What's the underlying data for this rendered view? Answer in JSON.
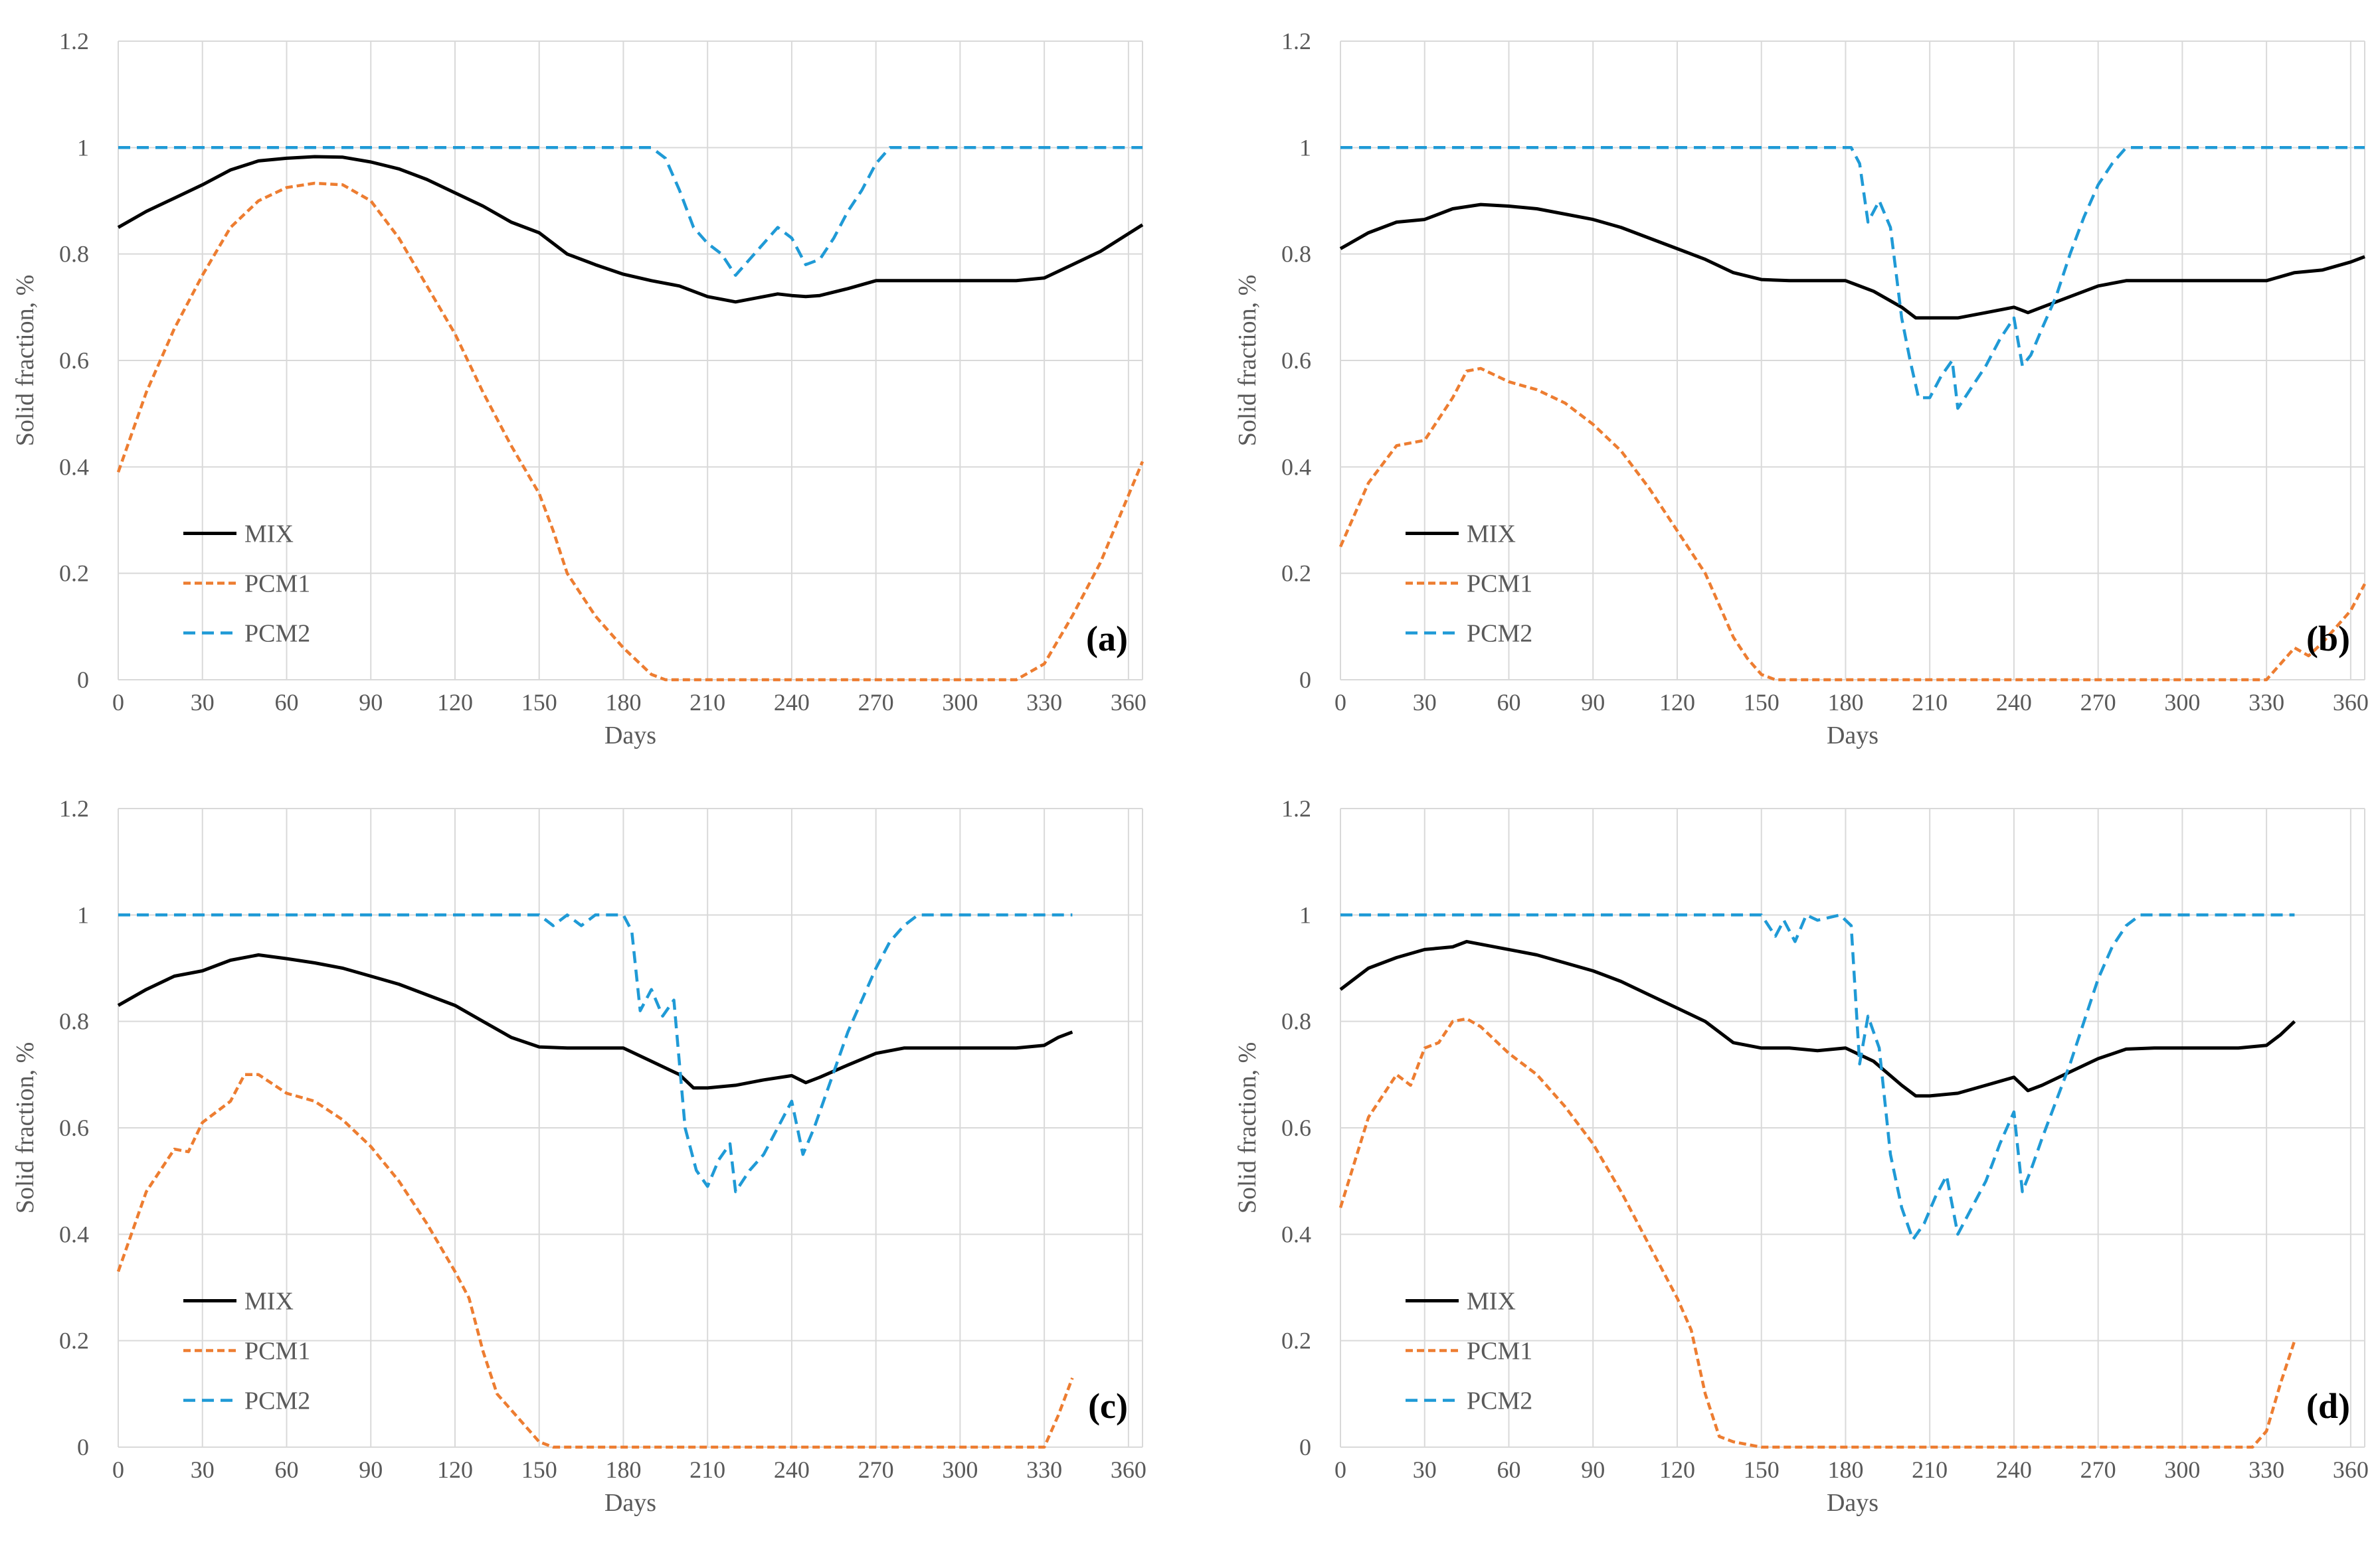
{
  "series_colors": {
    "MIX": "#000000",
    "PCM1": "#ED7D31",
    "PCM2": "#1F9AD6"
  },
  "grid_color": "#D9D9D9",
  "chart_data": [
    {
      "type": "line",
      "panel_label": "(a)",
      "xlabel": "Days",
      "ylabel": "Solid fraction, %",
      "xlim": [
        0,
        365
      ],
      "ylim": [
        0,
        1.2
      ],
      "xticks": [
        0,
        30,
        60,
        90,
        120,
        150,
        180,
        210,
        240,
        270,
        300,
        330,
        360
      ],
      "yticks": [
        0,
        0.2,
        0.4,
        0.6,
        0.8,
        1,
        1.2
      ],
      "yticklabels": [
        "0",
        "0.2",
        "0.4",
        "0.6",
        "0.8",
        "1",
        "1.2"
      ],
      "grid": true,
      "legend": "bottom-left",
      "series": [
        {
          "name": "MIX",
          "style": "solid",
          "x": [
            0,
            10,
            20,
            30,
            40,
            50,
            60,
            70,
            80,
            90,
            100,
            110,
            120,
            130,
            140,
            150,
            160,
            170,
            180,
            190,
            200,
            210,
            215,
            220,
            230,
            235,
            240,
            245,
            250,
            260,
            270,
            280,
            290,
            300,
            310,
            320,
            330,
            340,
            350,
            365
          ],
          "y": [
            0.85,
            0.88,
            0.905,
            0.93,
            0.958,
            0.975,
            0.98,
            0.983,
            0.982,
            0.973,
            0.96,
            0.94,
            0.915,
            0.89,
            0.86,
            0.84,
            0.8,
            0.78,
            0.762,
            0.75,
            0.74,
            0.72,
            0.715,
            0.71,
            0.72,
            0.725,
            0.722,
            0.72,
            0.722,
            0.735,
            0.75,
            0.75,
            0.75,
            0.75,
            0.75,
            0.75,
            0.755,
            0.78,
            0.805,
            0.855
          ]
        },
        {
          "name": "PCM1",
          "style": "dashed",
          "x": [
            0,
            10,
            20,
            30,
            40,
            50,
            60,
            70,
            80,
            90,
            100,
            110,
            120,
            130,
            140,
            150,
            155,
            160,
            170,
            180,
            190,
            195,
            200,
            250,
            300,
            320,
            330,
            340,
            350,
            365
          ],
          "y": [
            0.39,
            0.54,
            0.66,
            0.76,
            0.85,
            0.9,
            0.925,
            0.933,
            0.93,
            0.9,
            0.83,
            0.74,
            0.65,
            0.54,
            0.44,
            0.35,
            0.28,
            0.2,
            0.12,
            0.06,
            0.01,
            0.0,
            0.0,
            0.0,
            0.0,
            0.0,
            0.03,
            0.12,
            0.22,
            0.41
          ]
        },
        {
          "name": "PCM2",
          "style": "dashed",
          "x": [
            0,
            190,
            195,
            200,
            205,
            210,
            215,
            220,
            225,
            230,
            235,
            240,
            245,
            250,
            255,
            260,
            265,
            270,
            275,
            365
          ],
          "y": [
            1,
            1,
            0.98,
            0.92,
            0.85,
            0.82,
            0.8,
            0.76,
            0.79,
            0.82,
            0.85,
            0.83,
            0.78,
            0.79,
            0.83,
            0.88,
            0.92,
            0.97,
            1,
            1
          ]
        }
      ]
    },
    {
      "type": "line",
      "panel_label": "(b)",
      "xlabel": "Days",
      "ylabel": "Solid fraction, %",
      "xlim": [
        0,
        365
      ],
      "ylim": [
        0,
        1.2
      ],
      "xticks": [
        0,
        30,
        60,
        90,
        120,
        150,
        180,
        210,
        240,
        270,
        300,
        330,
        360
      ],
      "yticks": [
        0,
        0.2,
        0.4,
        0.6,
        0.8,
        1,
        1.2
      ],
      "yticklabels": [
        "0",
        "0.2",
        "0.4",
        "0.6",
        "0.8",
        "1",
        "1.2"
      ],
      "grid": true,
      "legend": "bottom-left",
      "series": [
        {
          "name": "MIX",
          "style": "solid",
          "x": [
            0,
            10,
            20,
            30,
            40,
            50,
            60,
            70,
            80,
            90,
            100,
            110,
            120,
            130,
            140,
            150,
            160,
            170,
            180,
            190,
            200,
            205,
            210,
            220,
            230,
            240,
            245,
            250,
            260,
            270,
            280,
            290,
            300,
            310,
            320,
            330,
            340,
            350,
            360,
            365
          ],
          "y": [
            0.81,
            0.84,
            0.86,
            0.865,
            0.885,
            0.893,
            0.89,
            0.885,
            0.875,
            0.865,
            0.85,
            0.83,
            0.81,
            0.79,
            0.765,
            0.752,
            0.75,
            0.75,
            0.75,
            0.73,
            0.7,
            0.68,
            0.68,
            0.68,
            0.69,
            0.7,
            0.69,
            0.7,
            0.72,
            0.74,
            0.75,
            0.75,
            0.75,
            0.75,
            0.75,
            0.75,
            0.765,
            0.77,
            0.785,
            0.795
          ]
        },
        {
          "name": "PCM1",
          "style": "dashed",
          "x": [
            0,
            10,
            20,
            30,
            40,
            45,
            50,
            60,
            70,
            80,
            90,
            100,
            110,
            120,
            130,
            140,
            145,
            150,
            155,
            200,
            300,
            330,
            335,
            340,
            345,
            350,
            360,
            365
          ],
          "y": [
            0.25,
            0.37,
            0.44,
            0.45,
            0.53,
            0.58,
            0.585,
            0.56,
            0.545,
            0.52,
            0.48,
            0.43,
            0.36,
            0.28,
            0.2,
            0.08,
            0.04,
            0.01,
            0.0,
            0.0,
            0.0,
            0.0,
            0.03,
            0.06,
            0.045,
            0.07,
            0.13,
            0.18
          ]
        },
        {
          "name": "PCM2",
          "style": "dashed",
          "x": [
            0,
            182,
            185,
            188,
            192,
            196,
            200,
            203,
            206,
            210,
            214,
            218,
            220,
            225,
            230,
            235,
            240,
            243,
            246,
            250,
            255,
            260,
            265,
            270,
            275,
            280,
            365
          ],
          "y": [
            1,
            1,
            0.97,
            0.86,
            0.9,
            0.85,
            0.68,
            0.6,
            0.53,
            0.53,
            0.57,
            0.6,
            0.51,
            0.55,
            0.59,
            0.64,
            0.68,
            0.59,
            0.61,
            0.66,
            0.72,
            0.8,
            0.87,
            0.93,
            0.97,
            1,
            1
          ]
        }
      ]
    },
    {
      "type": "line",
      "panel_label": "(c)",
      "xlabel": "Days",
      "ylabel": "Solid fraction, %",
      "xlim": [
        0,
        365
      ],
      "ylim": [
        0,
        1.2
      ],
      "xticks": [
        0,
        30,
        60,
        90,
        120,
        150,
        180,
        210,
        240,
        270,
        300,
        330,
        360
      ],
      "yticks": [
        0,
        0.2,
        0.4,
        0.6,
        0.8,
        1,
        1.2
      ],
      "yticklabels": [
        "0",
        "0.2",
        "0.4",
        "0.6",
        "0.8",
        "1",
        "1.2"
      ],
      "grid": true,
      "legend": "bottom-left",
      "series": [
        {
          "name": "MIX",
          "style": "solid",
          "x": [
            0,
            10,
            20,
            30,
            40,
            50,
            60,
            70,
            80,
            90,
            100,
            110,
            120,
            130,
            140,
            150,
            160,
            170,
            180,
            190,
            200,
            205,
            210,
            220,
            230,
            240,
            245,
            250,
            260,
            270,
            280,
            290,
            300,
            310,
            320,
            330,
            335,
            340
          ],
          "y": [
            0.83,
            0.86,
            0.885,
            0.895,
            0.915,
            0.925,
            0.918,
            0.91,
            0.9,
            0.885,
            0.87,
            0.85,
            0.83,
            0.8,
            0.77,
            0.752,
            0.75,
            0.75,
            0.75,
            0.725,
            0.7,
            0.675,
            0.675,
            0.68,
            0.69,
            0.698,
            0.685,
            0.695,
            0.718,
            0.74,
            0.75,
            0.75,
            0.75,
            0.75,
            0.75,
            0.755,
            0.77,
            0.78
          ]
        },
        {
          "name": "PCM1",
          "style": "dashed",
          "x": [
            0,
            10,
            20,
            25,
            30,
            40,
            45,
            50,
            60,
            70,
            80,
            90,
            100,
            110,
            120,
            125,
            130,
            135,
            140,
            150,
            155,
            200,
            300,
            330,
            335,
            340
          ],
          "y": [
            0.33,
            0.48,
            0.56,
            0.555,
            0.61,
            0.65,
            0.7,
            0.7,
            0.665,
            0.65,
            0.615,
            0.565,
            0.5,
            0.42,
            0.33,
            0.28,
            0.18,
            0.1,
            0.07,
            0.01,
            0.0,
            0.0,
            0.0,
            0.0,
            0.06,
            0.13
          ]
        },
        {
          "name": "PCM2",
          "style": "dashed",
          "x": [
            0,
            150,
            155,
            160,
            165,
            170,
            180,
            183,
            186,
            190,
            194,
            198,
            202,
            206,
            210,
            214,
            218,
            220,
            225,
            230,
            235,
            240,
            244,
            248,
            252,
            256,
            260,
            265,
            270,
            275,
            280,
            285,
            340
          ],
          "y": [
            1,
            1,
            0.98,
            1,
            0.98,
            1,
            1,
            0.97,
            0.82,
            0.86,
            0.81,
            0.84,
            0.6,
            0.52,
            0.49,
            0.54,
            0.57,
            0.48,
            0.52,
            0.55,
            0.6,
            0.65,
            0.55,
            0.6,
            0.66,
            0.72,
            0.78,
            0.84,
            0.9,
            0.95,
            0.98,
            1,
            1
          ]
        }
      ]
    },
    {
      "type": "line",
      "panel_label": "(d)",
      "xlabel": "Days",
      "ylabel": "Solid fraction, %",
      "xlim": [
        0,
        365
      ],
      "ylim": [
        0,
        1.2
      ],
      "xticks": [
        0,
        30,
        60,
        90,
        120,
        150,
        180,
        210,
        240,
        270,
        300,
        330,
        360
      ],
      "yticks": [
        0,
        0.2,
        0.4,
        0.6,
        0.8,
        1,
        1.2
      ],
      "yticklabels": [
        "0",
        "0.2",
        "0.4",
        "0.6",
        "0.8",
        "1",
        "1.2"
      ],
      "grid": true,
      "legend": "bottom-left",
      "series": [
        {
          "name": "MIX",
          "style": "solid",
          "x": [
            0,
            10,
            20,
            30,
            40,
            45,
            50,
            60,
            70,
            80,
            90,
            100,
            110,
            120,
            130,
            140,
            150,
            160,
            170,
            180,
            190,
            200,
            205,
            210,
            220,
            230,
            240,
            245,
            250,
            260,
            270,
            280,
            290,
            300,
            310,
            320,
            330,
            335,
            340
          ],
          "y": [
            0.86,
            0.9,
            0.92,
            0.935,
            0.94,
            0.95,
            0.945,
            0.935,
            0.925,
            0.91,
            0.895,
            0.875,
            0.85,
            0.825,
            0.8,
            0.76,
            0.75,
            0.75,
            0.745,
            0.75,
            0.725,
            0.68,
            0.66,
            0.66,
            0.665,
            0.68,
            0.695,
            0.67,
            0.68,
            0.705,
            0.73,
            0.748,
            0.75,
            0.75,
            0.75,
            0.75,
            0.755,
            0.775,
            0.8
          ]
        },
        {
          "name": "PCM1",
          "style": "dashed",
          "x": [
            0,
            10,
            20,
            25,
            30,
            35,
            40,
            45,
            50,
            60,
            70,
            80,
            90,
            100,
            110,
            120,
            125,
            130,
            135,
            140,
            150,
            200,
            300,
            325,
            330,
            335,
            340
          ],
          "y": [
            0.45,
            0.62,
            0.7,
            0.68,
            0.75,
            0.76,
            0.8,
            0.805,
            0.79,
            0.74,
            0.7,
            0.64,
            0.57,
            0.48,
            0.38,
            0.28,
            0.22,
            0.1,
            0.02,
            0.01,
            0.0,
            0.0,
            0.0,
            0.0,
            0.03,
            0.12,
            0.2
          ]
        },
        {
          "name": "PCM2",
          "style": "dashed",
          "x": [
            0,
            150,
            155,
            158,
            162,
            166,
            170,
            178,
            182,
            185,
            188,
            192,
            196,
            200,
            204,
            208,
            212,
            216,
            220,
            225,
            230,
            235,
            240,
            243,
            246,
            250,
            255,
            260,
            265,
            270,
            275,
            280,
            285,
            340
          ],
          "y": [
            1,
            1,
            0.96,
            0.99,
            0.95,
            1,
            0.99,
            1,
            0.98,
            0.72,
            0.81,
            0.75,
            0.55,
            0.45,
            0.39,
            0.42,
            0.47,
            0.51,
            0.4,
            0.45,
            0.5,
            0.57,
            0.63,
            0.48,
            0.52,
            0.58,
            0.65,
            0.72,
            0.8,
            0.88,
            0.94,
            0.98,
            1,
            1
          ]
        }
      ]
    }
  ]
}
